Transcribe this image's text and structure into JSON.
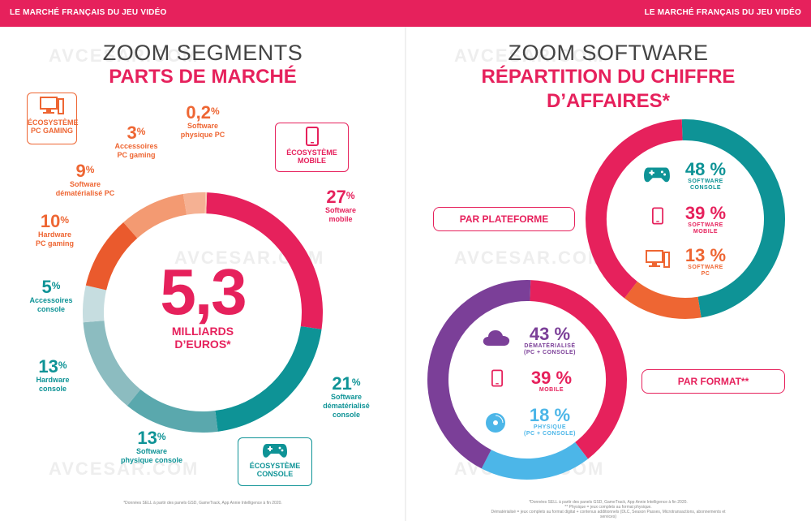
{
  "header": {
    "left": "LE MARCHÉ FRANÇAIS DU JEU VIDÉO",
    "right": "LE MARCHÉ FRANÇAIS DU JEU VIDÉO"
  },
  "watermark": "AVCESAR.COM",
  "left": {
    "title": "ZOOM SEGMENTS",
    "subtitle": "PARTS DE MARCHÉ",
    "center_value": "5,3",
    "center_unit_1": "MILLIARDS",
    "center_unit_2": "D’EUROS*",
    "eco_pc_1": "ÉCOSYSTÈME",
    "eco_pc_2": "PC GAMING",
    "eco_mobile_1": "ÉCOSYSTÈME",
    "eco_mobile_2": "MOBILE",
    "eco_console_1": "ÉCOSYSTÈME",
    "eco_console_2": "CONSOLE",
    "footnote": "*Données SELL à partir des panels GSD, GameTrack, App Annie Intelligence à fin 2020.",
    "colors": {
      "pc": "#ee6633",
      "mobile": "#e6215c",
      "console": "#0e9396",
      "grey": "#8fb5ba"
    }
  },
  "right": {
    "title": "ZOOM SOFTWARE",
    "subtitle_1": "RÉPARTITION DU CHIFFRE",
    "subtitle_2": "D’AFFAIRES*",
    "pill_platform": "PAR PLATEFORME",
    "pill_format": "PAR FORMAT**",
    "footnote_1": "*Données SELL à partir des panels GSD, GameTrack, App Annie Intelligence à fin 2020.",
    "footnote_2": "** Physique = jeux complets au format physique.",
    "footnote_3": "Dématérialisé = jeux complets au format digital + contenus additionnels (DLC, Season Passes, Microtransactions, abonnements et services)"
  },
  "chart_data": [
    {
      "type": "pie",
      "title": "PARTS DE MARCHÉ",
      "unit": "%",
      "slices": [
        {
          "label_1": "Software",
          "label_2": "mobile",
          "value": 27,
          "display": "27",
          "color": "#e6215c"
        },
        {
          "label_1": "Software",
          "label_2": "dématérialisé",
          "label_3": "console",
          "value": 21,
          "display": "21",
          "color": "#0e9396"
        },
        {
          "label_1": "Software",
          "label_2": "physique console",
          "value": 13,
          "display": "13",
          "color": "#5aa8ad"
        },
        {
          "label_1": "Hardware",
          "label_2": "console",
          "value": 13,
          "display": "13",
          "color": "#8cbcc0"
        },
        {
          "label_1": "Accessoires",
          "label_2": "console",
          "value": 5,
          "display": "5",
          "color": "#c6dde0"
        },
        {
          "label_1": "Hardware",
          "label_2": "PC gaming",
          "value": 10,
          "display": "10",
          "color": "#ea5a2d"
        },
        {
          "label_1": "Software",
          "label_2": "dématérialisé PC",
          "value": 9,
          "display": "9",
          "color": "#f39a72"
        },
        {
          "label_1": "Accessoires",
          "label_2": "PC gaming",
          "value": 3,
          "display": "3",
          "color": "#f5b193"
        },
        {
          "label_1": "Software",
          "label_2": "physique PC",
          "value": 0.2,
          "display": "0,2",
          "color": "#f8c6ad"
        }
      ]
    },
    {
      "type": "pie",
      "title": "PAR PLATEFORME",
      "unit": "%",
      "slices": [
        {
          "label_1": "SOFTWARE",
          "label_2": "CONSOLE",
          "value": 48,
          "display": "48",
          "color": "#0e9396"
        },
        {
          "label_1": "SOFTWARE",
          "label_2": "PC",
          "value": 13,
          "display": "13",
          "color": "#ee6633"
        },
        {
          "label_1": "SOFTWARE",
          "label_2": "MOBILE",
          "value": 39,
          "display": "39",
          "color": "#e6215c"
        }
      ]
    },
    {
      "type": "pie",
      "title": "PAR FORMAT**",
      "unit": "%",
      "slices": [
        {
          "label_1": "MOBILE",
          "value": 39,
          "display": "39",
          "color": "#e6215c"
        },
        {
          "label_1": "PHYSIQUE",
          "label_2": "(PC + CONSOLE)",
          "value": 18,
          "display": "18",
          "color": "#4cb6e8"
        },
        {
          "label_1": "DÉMATÉRIALISÉ",
          "label_2": "(PC + CONSOLE)",
          "value": 43,
          "display": "43",
          "color": "#7b3f98"
        }
      ]
    }
  ]
}
